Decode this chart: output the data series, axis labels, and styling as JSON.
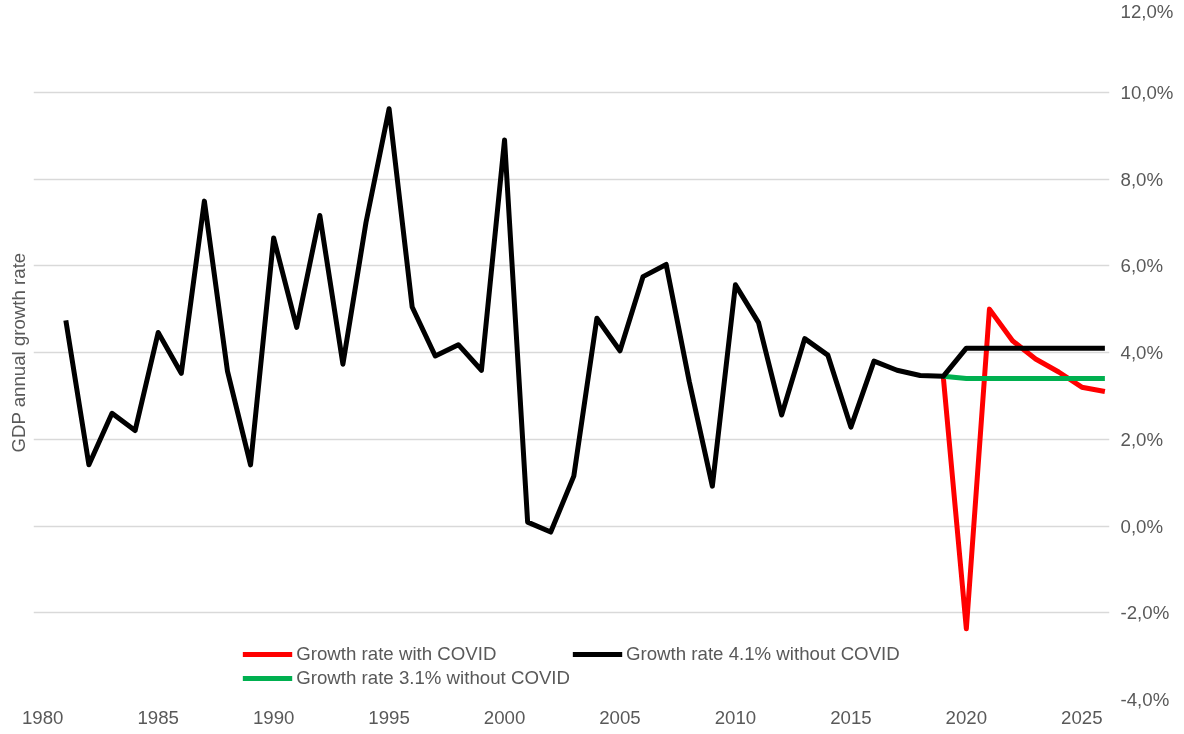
{
  "chart_data": {
    "type": "line",
    "ylabel": "GDP annual growth rate",
    "xlim": [
      1979.6,
      2026.2
    ],
    "xticks": [
      1980,
      1985,
      1990,
      1995,
      2000,
      2005,
      2010,
      2015,
      2020,
      2025
    ],
    "ylim": [
      -4,
      12
    ],
    "yticks": [
      {
        "value": -4,
        "label": "-4,0%"
      },
      {
        "value": -2,
        "label": "-2,0%"
      },
      {
        "value": 0,
        "label": "0,0%"
      },
      {
        "value": 2,
        "label": "2,0%"
      },
      {
        "value": 4,
        "label": "4,0%"
      },
      {
        "value": 6,
        "label": "6,0%"
      },
      {
        "value": 8,
        "label": "8,0%"
      },
      {
        "value": 10,
        "label": "10,0%"
      },
      {
        "value": 12,
        "label": "12,0%"
      }
    ],
    "grid": "y",
    "legend": "bottom",
    "marker": "none",
    "line_style": "solid",
    "series": [
      {
        "name": "Growth rate with COVID",
        "color": "#ff0000",
        "x": [
          2019,
          2020,
          2021,
          2022,
          2023,
          2024,
          2025,
          2026
        ],
        "values": [
          3.45,
          -2.37,
          5.0,
          4.27,
          3.85,
          3.55,
          3.2,
          3.1
        ]
      },
      {
        "name": "Growth rate 3.1% without COVID",
        "color": "#00b050",
        "x": [
          2019,
          2020,
          2021,
          2022,
          2023,
          2024,
          2025,
          2026
        ],
        "values": [
          3.45,
          3.4,
          3.4,
          3.4,
          3.4,
          3.4,
          3.4,
          3.4
        ]
      },
      {
        "name": "Growth rate 4.1% without COVID",
        "color": "#000000",
        "x": [
          1981,
          1982,
          1983,
          1984,
          1985,
          1986,
          1987,
          1988,
          1989,
          1990,
          1991,
          1992,
          1993,
          1994,
          1995,
          1996,
          1997,
          1998,
          1999,
          2000,
          2001,
          2002,
          2003,
          2004,
          2005,
          2006,
          2007,
          2008,
          2009,
          2010,
          2011,
          2012,
          2013,
          2014,
          2015,
          2016,
          2017,
          2018,
          2019,
          2020,
          2021,
          2022,
          2023,
          2024,
          2025,
          2026
        ],
        "values": [
          4.74,
          1.41,
          2.6,
          2.2,
          4.46,
          3.52,
          7.49,
          3.57,
          1.41,
          6.64,
          4.58,
          7.16,
          3.73,
          7.0,
          9.62,
          5.05,
          3.92,
          4.18,
          3.59,
          8.9,
          0.09,
          -0.14,
          1.15,
          4.79,
          4.04,
          5.75,
          6.03,
          3.33,
          0.92,
          5.56,
          4.69,
          2.56,
          4.32,
          3.94,
          2.28,
          3.8,
          3.59,
          3.47,
          3.45,
          4.1,
          4.1,
          4.1,
          4.1,
          4.1,
          4.1,
          4.1
        ]
      }
    ]
  }
}
